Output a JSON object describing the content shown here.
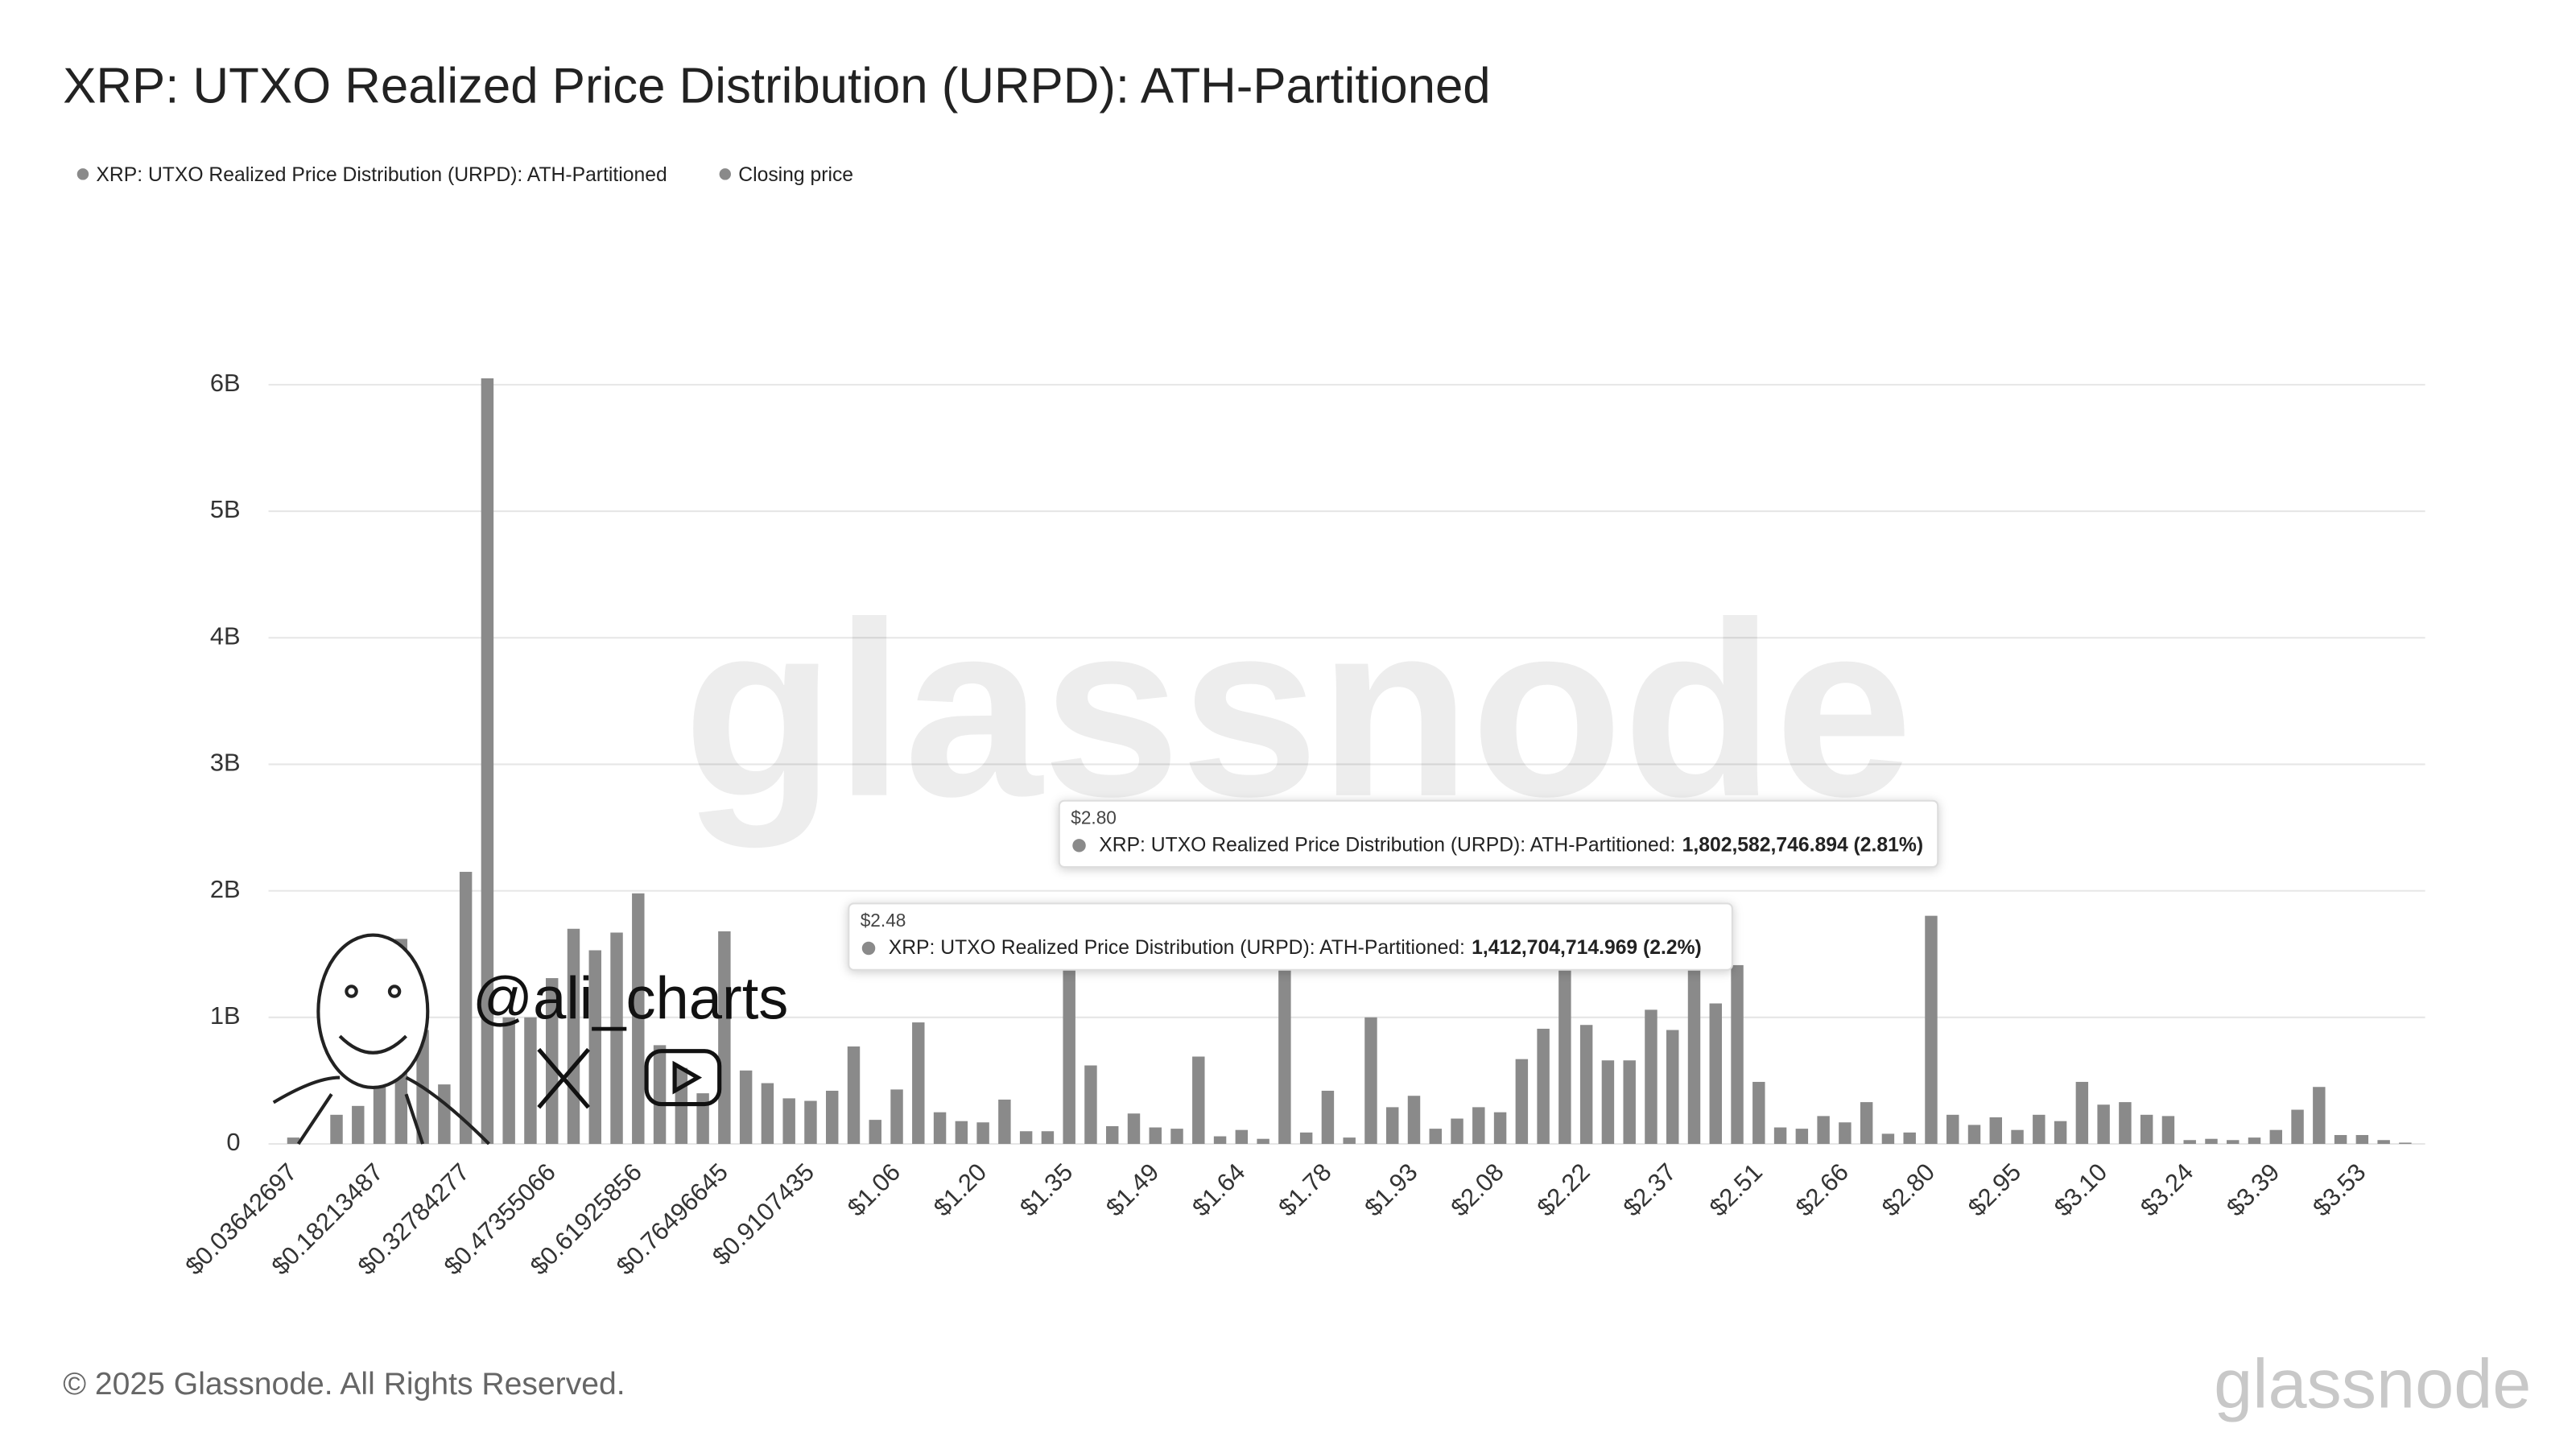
{
  "chart_data": {
    "type": "bar",
    "title": "XRP: UTXO Realized Price Distribution (URPD): ATH-Partitioned",
    "categories": [
      "$0.03642697",
      null,
      null,
      null,
      "$0.18213487",
      null,
      null,
      null,
      "$0.32784277",
      null,
      null,
      null,
      "$0.47355066",
      null,
      null,
      null,
      "$0.61925856",
      null,
      null,
      null,
      "$0.76496645",
      null,
      null,
      null,
      "$0.9107435",
      null,
      null,
      null,
      "$1.06",
      null,
      null,
      null,
      "$1.20",
      null,
      null,
      null,
      "$1.35",
      null,
      null,
      null,
      "$1.49",
      null,
      null,
      null,
      "$1.64",
      null,
      null,
      null,
      "$1.78",
      null,
      null,
      null,
      "$1.93",
      null,
      null,
      null,
      "$2.08",
      null,
      null,
      null,
      "$2.22",
      null,
      null,
      null,
      "$2.37",
      null,
      null,
      null,
      "$2.51",
      null,
      null,
      null,
      "$2.66",
      null,
      null,
      null,
      "$2.80",
      null,
      null,
      null,
      "$2.95",
      null,
      null,
      null,
      "$3.10",
      null,
      null,
      null,
      "$3.24",
      null,
      null,
      null,
      "$3.39",
      null,
      null,
      null,
      "$3.53",
      null,
      null
    ],
    "series": [
      {
        "name": "XRP: UTXO Realized Price Distribution (URPD): ATH-Partitioned",
        "color": "#8a8a8a",
        "values": [
          50000000,
          0,
          230000000,
          300000000,
          600000000,
          1620000000,
          900000000,
          470000000,
          2150000000,
          6050000000,
          1000000000,
          1000000000,
          1310000000,
          1700000000,
          1530000000,
          1670000000,
          1980000000,
          780000000,
          600000000,
          400000000,
          1680000000,
          580000000,
          480000000,
          360000000,
          340000000,
          420000000,
          770000000,
          190000000,
          430000000,
          960000000,
          250000000,
          180000000,
          170000000,
          350000000,
          100000000,
          100000000,
          1400000000,
          620000000,
          140000000,
          240000000,
          130000000,
          120000000,
          690000000,
          60000000,
          110000000,
          40000000,
          1500000000,
          90000000,
          420000000,
          50000000,
          1000000000,
          290000000,
          380000000,
          120000000,
          200000000,
          290000000,
          250000000,
          670000000,
          910000000,
          1450000000,
          940000000,
          660000000,
          660000000,
          1060000000,
          900000000,
          1400000000,
          1110000000,
          1412704714.969,
          490000000,
          130000000,
          120000000,
          220000000,
          170000000,
          330000000,
          80000000,
          90000000,
          1802582746.894,
          230000000,
          150000000,
          210000000,
          110000000,
          230000000,
          180000000,
          490000000,
          310000000,
          330000000,
          230000000,
          220000000,
          30000000,
          40000000,
          30000000,
          50000000,
          110000000,
          270000000,
          450000000,
          70000000,
          70000000,
          30000000,
          10000000
        ]
      },
      {
        "name": "Closing price",
        "color": "#8a8a8a",
        "values": [
          null,
          null,
          null,
          null,
          null,
          null,
          null,
          null,
          null,
          null,
          null,
          null,
          null,
          null,
          null,
          null,
          null,
          null,
          null,
          null,
          null,
          null,
          null,
          null,
          null,
          null,
          null,
          null,
          null,
          null,
          null,
          null,
          null,
          null,
          null,
          null,
          null,
          null,
          null,
          null,
          null,
          null,
          null,
          null,
          null,
          null,
          null,
          null,
          null,
          null,
          null,
          null,
          null,
          null,
          null,
          null,
          null,
          null,
          null,
          null,
          null,
          null,
          null,
          null,
          null,
          null,
          null,
          null,
          null,
          null,
          null,
          null,
          null,
          null,
          null,
          null,
          null,
          null,
          null,
          null,
          null,
          null,
          null,
          null,
          null,
          null,
          null,
          null,
          null,
          null,
          null,
          null,
          null,
          null,
          null,
          null,
          null,
          null,
          null
        ]
      }
    ],
    "ylim": [
      0,
      6000000000
    ],
    "yticks": [
      0,
      {
        "value": 1000000000,
        "label": "1B"
      },
      {
        "value": 2000000000,
        "label": "2B"
      },
      {
        "value": 3000000000,
        "label": "3B"
      },
      {
        "value": 4000000000,
        "label": "4B"
      },
      {
        "value": 5000000000,
        "label": "5B"
      },
      {
        "value": 6000000000,
        "label": "6B"
      }
    ],
    "grid": true,
    "tooltips": [
      {
        "title": "$2.80",
        "label": "XRP: UTXO Realized Price Distribution (URPD): ATH-Partitioned:",
        "value": "1,802,582,746.894 (2.81%)"
      },
      {
        "title": "$2.48",
        "label": "XRP: UTXO Realized Price Distribution (URPD): ATH-Partitioned:",
        "value": "1,412,704,714.969 (2.2%)"
      }
    ]
  },
  "watermark": "glassnode",
  "handle": "@ali_charts",
  "footer": "© 2025 Glassnode. All Rights Reserved.",
  "logo": "glassnode"
}
